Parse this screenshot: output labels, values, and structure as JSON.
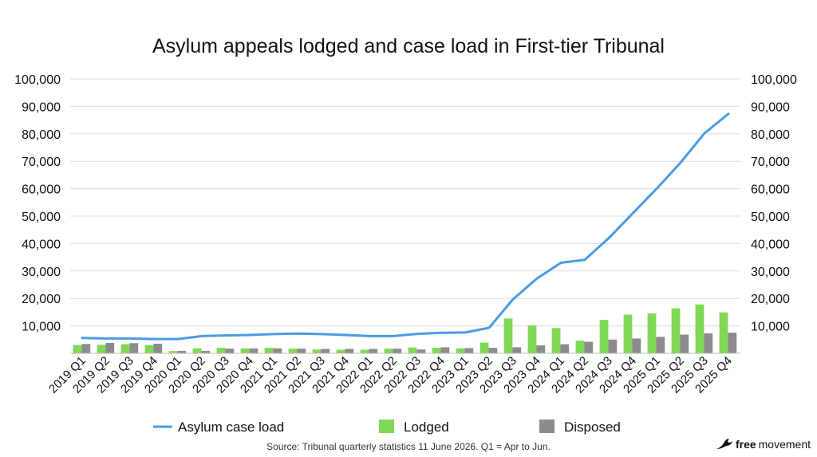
{
  "chart_data": {
    "type": "bar",
    "title": "Asylum appeals lodged and case load in First-tier Tribunal",
    "categories": [
      "2019 Q1",
      "2019 Q2",
      "2019 Q3",
      "2019 Q4",
      "2020 Q1",
      "2020 Q2",
      "2020 Q3",
      "2020 Q4",
      "2021 Q1",
      "2021 Q2",
      "2021 Q3",
      "2021 Q4",
      "2022 Q1",
      "2022 Q2",
      "2022 Q3",
      "2022 Q4",
      "2023 Q1",
      "2023 Q2",
      "2023 Q3",
      "2023 Q4",
      "2024 Q1",
      "2024 Q2",
      "2024 Q3",
      "2024 Q4",
      "2025 Q1",
      "2025 Q2",
      "2025 Q3",
      "2025 Q4"
    ],
    "series": [
      {
        "name": "Asylum case load",
        "kind": "line",
        "color": "#4a9be3",
        "values": [
          5600,
          5400,
          5400,
          5200,
          5200,
          6300,
          6500,
          6700,
          7000,
          7200,
          7000,
          6700,
          6300,
          6300,
          7100,
          7500,
          7600,
          9300,
          19700,
          27300,
          33000,
          34100,
          42000,
          51000,
          60000,
          69500,
          80200,
          87300
        ]
      },
      {
        "name": "Lodged",
        "kind": "bar",
        "color": "#7fd957",
        "values": [
          3000,
          3100,
          3300,
          3000,
          800,
          1800,
          2000,
          1800,
          2000,
          1700,
          1400,
          1300,
          1300,
          1700,
          2100,
          2000,
          1800,
          3900,
          12700,
          10200,
          9200,
          4600,
          12200,
          14100,
          14600,
          16400,
          17800,
          14900
        ]
      },
      {
        "name": "Disposed",
        "kind": "bar",
        "color": "#8c8c8c",
        "values": [
          3400,
          3800,
          3700,
          3500,
          900,
          900,
          1700,
          1800,
          1800,
          1700,
          1600,
          1600,
          1600,
          1700,
          1400,
          2200,
          1900,
          2000,
          2200,
          2900,
          3300,
          4200,
          5000,
          5400,
          6000,
          6800,
          7300,
          7500
        ]
      }
    ],
    "ylim": [
      0,
      100000
    ],
    "y_ticks_left": [
      "100,000",
      "90,000",
      "80,000",
      "70,000",
      "60,000",
      "50,000",
      "40,000",
      "30,000",
      "20,000",
      "10,000"
    ],
    "y_ticks_right": [
      "100,000",
      "90,000",
      "80,000",
      "70,000",
      "60,000",
      "50,000",
      "40,000",
      "30,000",
      "20,000",
      "10,000"
    ],
    "grid": true,
    "legend_placement": "bottom"
  },
  "footer": {
    "source": "Source: Tribunal quarterly statistics 11 June 2026. Q1 = Apr to Jun.",
    "brand_bold": "free",
    "brand_regular": "movement",
    "brand_icon": "bird-logo-icon"
  }
}
